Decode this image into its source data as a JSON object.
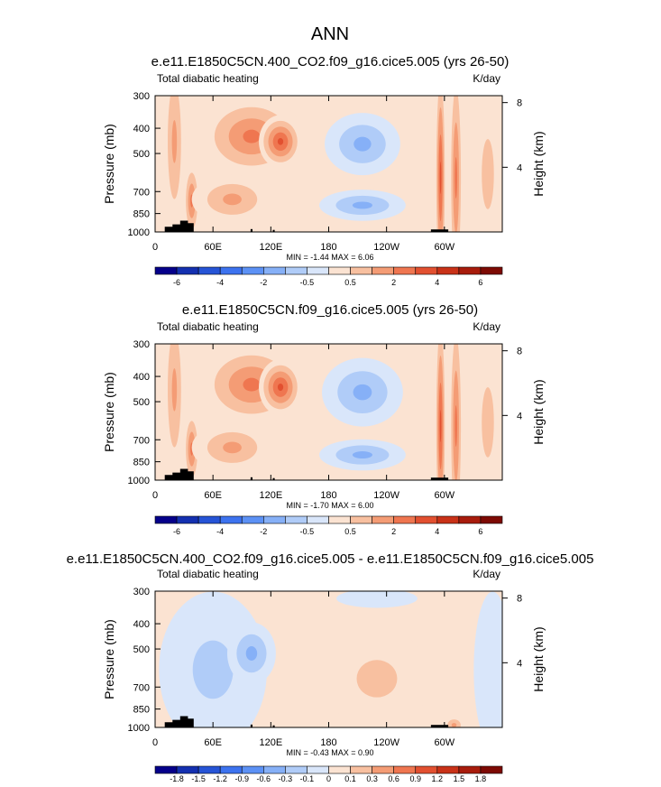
{
  "main_title": "ANN",
  "chart_data": [
    {
      "type": "heatmap",
      "title": "e.e11.E1850C5CN.400_CO2.f09_g16.cice5.005 (yrs 26-50)",
      "left_label": "Total diabatic heating",
      "right_label": "K/day",
      "ylabel": "Pressure (mb)",
      "ylabel_right": "Height (km)",
      "y_ticks": [
        "300",
        "400",
        "500",
        "700",
        "850",
        "1000"
      ],
      "y_tick_values": [
        300,
        400,
        500,
        700,
        850,
        1000
      ],
      "ylim": [
        300,
        1000
      ],
      "x_ticks": [
        "0",
        "60E",
        "120E",
        "180",
        "120W",
        "60W"
      ],
      "x_tick_values": [
        0,
        60,
        120,
        180,
        240,
        300
      ],
      "xlim": [
        0,
        360
      ],
      "height_ticks": [
        "8",
        "4"
      ],
      "height_tick_values": [
        8,
        4
      ],
      "minmax": "MIN = -1.44  MAX =  6.06",
      "colorbar": {
        "labels": [
          "-6",
          "-4",
          "-2",
          "-0.5",
          "0.5",
          "2",
          "4",
          "6"
        ],
        "colors": [
          "#05008a",
          "#1430b0",
          "#2654d6",
          "#3d73ef",
          "#5c91f5",
          "#86b0f7",
          "#b0ccf8",
          "#d9e6fa",
          "#fbe3d2",
          "#f8c0a0",
          "#f49c75",
          "#ef7650",
          "#e25030",
          "#c93218",
          "#a81c0c",
          "#7d0a04"
        ]
      },
      "features": [
        {
          "lon": 20,
          "p": 450,
          "level": 3,
          "w": 8,
          "h": 600
        },
        {
          "lon": 38,
          "p": 760,
          "level": 4,
          "w": 6,
          "h": 250
        },
        {
          "lon": 100,
          "p": 430,
          "level": 4,
          "w": 38,
          "h": 260
        },
        {
          "lon": 130,
          "p": 450,
          "level": 5,
          "w": 16,
          "h": 170
        },
        {
          "lon": 80,
          "p": 750,
          "level": 3,
          "w": 30,
          "h": 160
        },
        {
          "lon": 215,
          "p": 460,
          "level": -3,
          "w": 28,
          "h": 200
        },
        {
          "lon": 215,
          "p": 790,
          "level": -3,
          "w": 32,
          "h": 100
        },
        {
          "lon": 296,
          "p": 620,
          "level": 5,
          "w": 4,
          "h": 800
        },
        {
          "lon": 312,
          "p": 620,
          "level": 4,
          "w": 5,
          "h": 800
        },
        {
          "lon": 345,
          "p": 600,
          "level": 2,
          "w": 12,
          "h": 600
        }
      ]
    },
    {
      "type": "heatmap",
      "title": "e.e11.E1850C5CN.f09_g16.cice5.005 (yrs 26-50)",
      "left_label": "Total diabatic heating",
      "right_label": "K/day",
      "ylabel": "Pressure (mb)",
      "ylabel_right": "Height (km)",
      "y_ticks": [
        "300",
        "400",
        "500",
        "700",
        "850",
        "1000"
      ],
      "y_tick_values": [
        300,
        400,
        500,
        700,
        850,
        1000
      ],
      "ylim": [
        300,
        1000
      ],
      "x_ticks": [
        "0",
        "60E",
        "120E",
        "180",
        "120W",
        "60W"
      ],
      "x_tick_values": [
        0,
        60,
        120,
        180,
        240,
        300
      ],
      "xlim": [
        0,
        360
      ],
      "height_ticks": [
        "8",
        "4"
      ],
      "height_tick_values": [
        8,
        4
      ],
      "minmax": "MIN = -1.70  MAX =  6.00",
      "colorbar": {
        "labels": [
          "-6",
          "-4",
          "-2",
          "-0.5",
          "0.5",
          "2",
          "4",
          "6"
        ],
        "colors": [
          "#05008a",
          "#1430b0",
          "#2654d6",
          "#3d73ef",
          "#5c91f5",
          "#86b0f7",
          "#b0ccf8",
          "#d9e6fa",
          "#fbe3d2",
          "#f8c0a0",
          "#f49c75",
          "#ef7650",
          "#e25030",
          "#c93218",
          "#a81c0c",
          "#7d0a04"
        ]
      },
      "features": [
        {
          "lon": 20,
          "p": 450,
          "level": 3,
          "w": 8,
          "h": 600
        },
        {
          "lon": 38,
          "p": 760,
          "level": 4,
          "w": 6,
          "h": 250
        },
        {
          "lon": 100,
          "p": 430,
          "level": 4,
          "w": 38,
          "h": 260
        },
        {
          "lon": 130,
          "p": 440,
          "level": 5,
          "w": 16,
          "h": 180
        },
        {
          "lon": 80,
          "p": 750,
          "level": 3,
          "w": 30,
          "h": 160
        },
        {
          "lon": 215,
          "p": 460,
          "level": -3,
          "w": 30,
          "h": 220
        },
        {
          "lon": 215,
          "p": 800,
          "level": -3,
          "w": 32,
          "h": 100
        },
        {
          "lon": 296,
          "p": 620,
          "level": 5,
          "w": 4,
          "h": 800
        },
        {
          "lon": 312,
          "p": 620,
          "level": 4,
          "w": 5,
          "h": 800
        },
        {
          "lon": 345,
          "p": 600,
          "level": 2,
          "w": 12,
          "h": 600
        }
      ]
    },
    {
      "type": "heatmap",
      "title": "e.e11.E1850C5CN.400_CO2.f09_g16.cice5.005 - e.e11.E1850C5CN.f09_g16.cice5.005",
      "left_label": "Total diabatic heating",
      "right_label": "K/day",
      "ylabel": "Pressure (mb)",
      "ylabel_right": "Height (km)",
      "y_ticks": [
        "300",
        "400",
        "500",
        "700",
        "850",
        "1000"
      ],
      "y_tick_values": [
        300,
        400,
        500,
        700,
        850,
        1000
      ],
      "ylim": [
        300,
        1000
      ],
      "x_ticks": [
        "0",
        "60E",
        "120E",
        "180",
        "120W",
        "60W"
      ],
      "x_tick_values": [
        0,
        60,
        120,
        180,
        240,
        300
      ],
      "xlim": [
        0,
        360
      ],
      "height_ticks": [
        "8",
        "4"
      ],
      "height_tick_values": [
        8,
        4
      ],
      "minmax": "MIN = -0.43  MAX =  0.90",
      "colorbar": {
        "labels": [
          "-1.8",
          "-1.5",
          "-1.2",
          "-0.9",
          "-0.6",
          "-0.3",
          "-0.1",
          "0",
          "0.1",
          "0.3",
          "0.6",
          "0.9",
          "1.2",
          "1.5",
          "1.8"
        ],
        "colors": [
          "#05008a",
          "#1430b0",
          "#2654d6",
          "#3d73ef",
          "#5c91f5",
          "#86b0f7",
          "#b0ccf8",
          "#d9e6fa",
          "#fbe3d2",
          "#f8c0a0",
          "#f49c75",
          "#ef7650",
          "#e25030",
          "#c93218",
          "#a81c0c",
          "#7d0a04"
        ]
      },
      "features": [
        {
          "lon": 60,
          "p": 600,
          "level": -2,
          "w": 40,
          "h": 500
        },
        {
          "lon": 100,
          "p": 520,
          "level": -3,
          "w": 18,
          "h": 200
        },
        {
          "lon": 230,
          "p": 650,
          "level": 2,
          "w": 40,
          "h": 320
        },
        {
          "lon": 230,
          "p": 320,
          "level": -1,
          "w": 30,
          "h": 60
        },
        {
          "lon": 310,
          "p": 980,
          "level": 3,
          "w": 8,
          "h": 60
        },
        {
          "lon": 350,
          "p": 600,
          "level": -1,
          "w": 14,
          "h": 500
        }
      ]
    }
  ]
}
